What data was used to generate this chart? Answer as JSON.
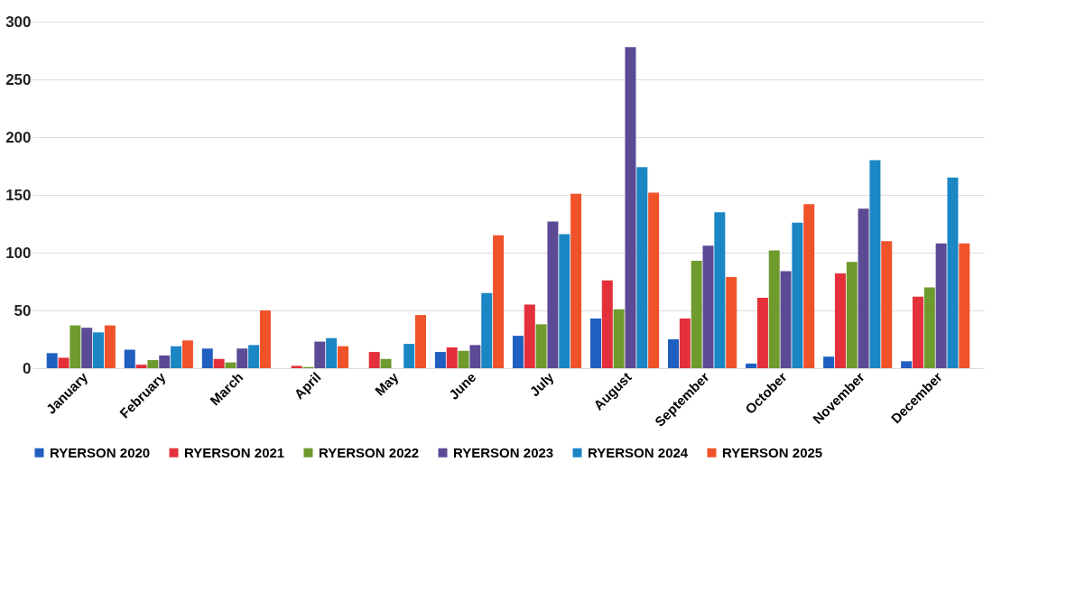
{
  "chart_data": {
    "type": "bar",
    "categories": [
      "January",
      "February",
      "March",
      "April",
      "May",
      "June",
      "July",
      "August",
      "September",
      "October",
      "November",
      "December"
    ],
    "series": [
      {
        "name": "RYERSON 2020",
        "color": "#1f5fbf",
        "values": [
          13,
          16,
          17,
          null,
          null,
          14,
          28,
          43,
          25,
          4,
          10,
          6
        ]
      },
      {
        "name": "RYERSON 2021",
        "color": "#e3303a",
        "values": [
          9,
          3,
          8,
          2,
          14,
          18,
          55,
          76,
          43,
          61,
          82,
          62
        ]
      },
      {
        "name": "RYERSON 2022",
        "color": "#6f9a2e",
        "values": [
          37,
          7,
          5,
          1,
          8,
          15,
          38,
          51,
          93,
          102,
          92,
          70
        ]
      },
      {
        "name": "RYERSON 2023",
        "color": "#5b4a94",
        "values": [
          35,
          11,
          17,
          23,
          null,
          20,
          127,
          278,
          106,
          84,
          138,
          108
        ]
      },
      {
        "name": "RYERSON 2024",
        "color": "#1a86c4",
        "values": [
          31,
          19,
          20,
          26,
          21,
          65,
          116,
          174,
          135,
          126,
          180,
          165
        ]
      },
      {
        "name": "RYERSON 2025",
        "color": "#f0522a",
        "values": [
          37,
          24,
          50,
          19,
          46,
          115,
          151,
          152,
          79,
          142,
          110,
          108
        ]
      }
    ],
    "ylim": [
      0,
      300
    ],
    "yticks": [
      0,
      50,
      100,
      150,
      200,
      250,
      300
    ],
    "grid": "y",
    "legend": "bottom"
  }
}
